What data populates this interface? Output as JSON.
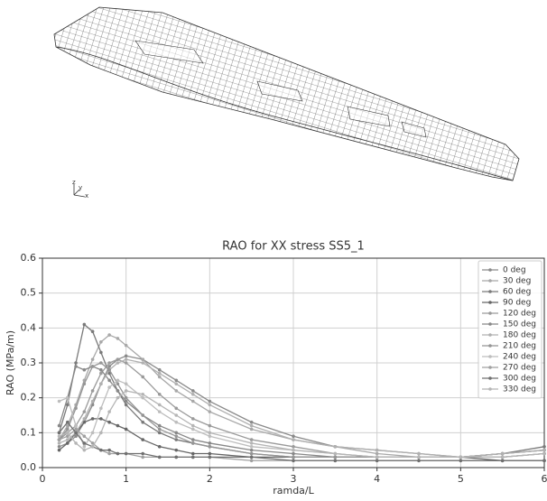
{
  "triad_labels": [
    "z",
    "y",
    "x"
  ],
  "chart_data": {
    "type": "line",
    "title": "RAO for XX stress SS5_1",
    "xlabel": "ramda/L",
    "ylabel": "RAO (MPa/m)",
    "x": [
      0.2,
      0.3,
      0.4,
      0.5,
      0.6,
      0.7,
      0.8,
      0.9,
      1.0,
      1.2,
      1.4,
      1.6,
      1.8,
      2.0,
      2.5,
      3.0,
      3.5,
      4.0,
      4.5,
      5.0,
      5.5,
      6.0
    ],
    "series": [
      {
        "name": "0 deg",
        "color": "#8a8a8a",
        "values": [
          0.06,
          0.07,
          0.09,
          0.13,
          0.18,
          0.24,
          0.29,
          0.31,
          0.32,
          0.31,
          0.28,
          0.25,
          0.22,
          0.19,
          0.13,
          0.09,
          0.06,
          0.05,
          0.04,
          0.03,
          0.04,
          0.05
        ]
      },
      {
        "name": "30 deg",
        "color": "#a8a8a8",
        "values": [
          0.08,
          0.12,
          0.18,
          0.25,
          0.31,
          0.36,
          0.38,
          0.37,
          0.35,
          0.31,
          0.26,
          0.22,
          0.19,
          0.16,
          0.11,
          0.08,
          0.06,
          0.04,
          0.03,
          0.03,
          0.04,
          0.05
        ]
      },
      {
        "name": "60 deg",
        "color": "#7a7a7a",
        "values": [
          0.1,
          0.18,
          0.3,
          0.41,
          0.39,
          0.33,
          0.27,
          0.22,
          0.18,
          0.13,
          0.1,
          0.08,
          0.07,
          0.06,
          0.04,
          0.03,
          0.03,
          0.03,
          0.03,
          0.03,
          0.04,
          0.06
        ]
      },
      {
        "name": "90 deg",
        "color": "#666666",
        "values": [
          0.05,
          0.07,
          0.1,
          0.13,
          0.14,
          0.14,
          0.13,
          0.12,
          0.11,
          0.08,
          0.06,
          0.05,
          0.04,
          0.04,
          0.03,
          0.03,
          0.03,
          0.03,
          0.03,
          0.03,
          0.02,
          0.02
        ]
      },
      {
        "name": "120 deg",
        "color": "#9a9a9a",
        "values": [
          0.08,
          0.1,
          0.12,
          0.16,
          0.22,
          0.27,
          0.3,
          0.31,
          0.3,
          0.26,
          0.21,
          0.17,
          0.14,
          0.12,
          0.08,
          0.06,
          0.04,
          0.03,
          0.03,
          0.03,
          0.04,
          0.05
        ]
      },
      {
        "name": "150 deg",
        "color": "#888888",
        "values": [
          0.12,
          0.2,
          0.29,
          0.28,
          0.29,
          0.28,
          0.25,
          0.22,
          0.19,
          0.15,
          0.12,
          0.1,
          0.08,
          0.07,
          0.05,
          0.04,
          0.03,
          0.03,
          0.03,
          0.03,
          0.03,
          0.04
        ]
      },
      {
        "name": "180 deg",
        "color": "#b0b0b0",
        "values": [
          0.07,
          0.08,
          0.1,
          0.14,
          0.19,
          0.24,
          0.28,
          0.3,
          0.31,
          0.3,
          0.27,
          0.24,
          0.21,
          0.18,
          0.12,
          0.08,
          0.06,
          0.05,
          0.04,
          0.03,
          0.04,
          0.05
        ]
      },
      {
        "name": "210 deg",
        "color": "#959595",
        "values": [
          0.08,
          0.11,
          0.17,
          0.24,
          0.29,
          0.3,
          0.28,
          0.24,
          0.2,
          0.15,
          0.11,
          0.09,
          0.07,
          0.06,
          0.04,
          0.03,
          0.03,
          0.03,
          0.03,
          0.03,
          0.03,
          0.04
        ]
      },
      {
        "name": "240 deg",
        "color": "#bdbdbd",
        "values": [
          0.19,
          0.2,
          0.12,
          0.06,
          0.1,
          0.17,
          0.23,
          0.25,
          0.24,
          0.2,
          0.16,
          0.13,
          0.11,
          0.09,
          0.06,
          0.05,
          0.04,
          0.03,
          0.03,
          0.03,
          0.03,
          0.04
        ]
      },
      {
        "name": "270 deg",
        "color": "#a0a0a0",
        "values": [
          0.08,
          0.09,
          0.11,
          0.09,
          0.07,
          0.05,
          0.04,
          0.04,
          0.04,
          0.03,
          0.03,
          0.03,
          0.03,
          0.03,
          0.02,
          0.02,
          0.02,
          0.02,
          0.02,
          0.02,
          0.02,
          0.02
        ]
      },
      {
        "name": "300 deg",
        "color": "#707070",
        "values": [
          0.1,
          0.13,
          0.1,
          0.07,
          0.06,
          0.05,
          0.05,
          0.04,
          0.04,
          0.04,
          0.03,
          0.03,
          0.03,
          0.03,
          0.03,
          0.02,
          0.02,
          0.02,
          0.02,
          0.02,
          0.02,
          0.02
        ]
      },
      {
        "name": "330 deg",
        "color": "#b5b5b5",
        "values": [
          0.09,
          0.1,
          0.07,
          0.05,
          0.06,
          0.1,
          0.16,
          0.2,
          0.22,
          0.21,
          0.18,
          0.15,
          0.12,
          0.1,
          0.07,
          0.05,
          0.04,
          0.03,
          0.03,
          0.03,
          0.03,
          0.04
        ]
      }
    ],
    "xlim": [
      0,
      6
    ],
    "xticks": [
      0,
      1,
      2,
      3,
      4,
      5,
      6
    ],
    "ylim": [
      0,
      0.6
    ],
    "yticks": [
      {
        "value": 0,
        "label": "0.0"
      },
      0.1,
      0.2,
      0.3,
      0.4,
      0.5,
      0.6
    ],
    "grid": true,
    "legend": "upper right"
  }
}
